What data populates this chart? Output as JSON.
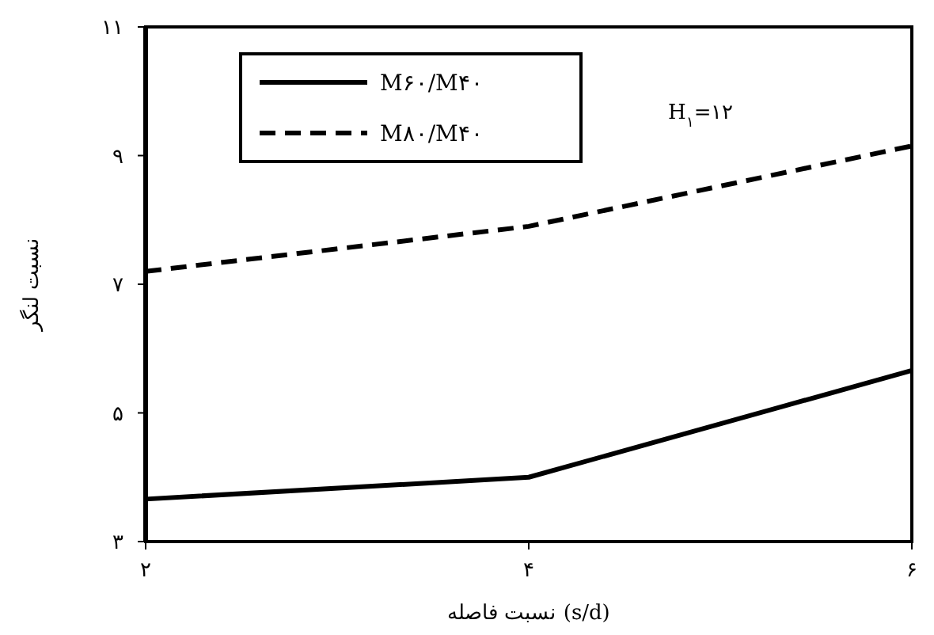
{
  "chart_data": {
    "type": "line",
    "xlabel": "نسبت فاصله (s/d)",
    "ylabel": "نسبت لنگر",
    "x": [
      2,
      4,
      6
    ],
    "series": [
      {
        "name": "M۶۰/M۴۰",
        "color": "#000000",
        "line_style": "solid",
        "values": [
          3.66,
          4.0,
          5.66
        ]
      },
      {
        "name": "M۸۰/M۴۰",
        "color": "#000000",
        "line_style": "dashed",
        "values": [
          7.2,
          7.9,
          9.15
        ]
      }
    ],
    "xlim": [
      2,
      6
    ],
    "ylim": [
      3,
      11
    ],
    "xticks": [
      {
        "value": 2,
        "label": "۲"
      },
      {
        "value": 4,
        "label": "۴"
      },
      {
        "value": 6,
        "label": "۶"
      }
    ],
    "yticks": [
      {
        "value": 3,
        "label": "۳"
      },
      {
        "value": 5,
        "label": "۵"
      },
      {
        "value": 7,
        "label": "۷"
      },
      {
        "value": 9,
        "label": "۹"
      },
      {
        "value": 11,
        "label": "۱۱"
      }
    ],
    "annotations": [
      "H$_{۱}$=۱۲"
    ],
    "legend": "top left",
    "grid": false,
    "marker": "none"
  }
}
